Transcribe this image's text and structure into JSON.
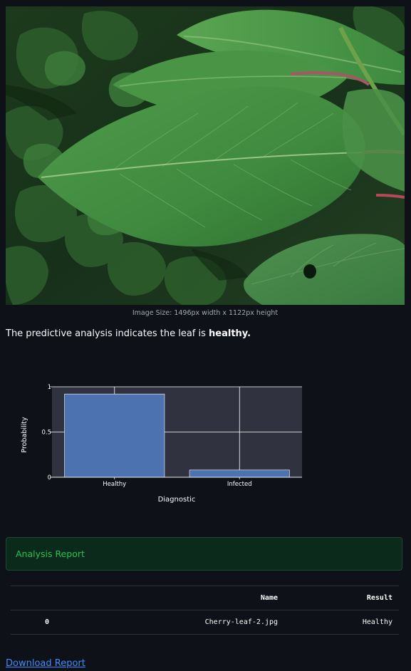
{
  "image": {
    "caption": "Image Size: 1496px width x 1122px height"
  },
  "analysis": {
    "prefix": "The predictive analysis indicates the leaf is ",
    "result": "healthy."
  },
  "chart_data": {
    "type": "bar",
    "categories": [
      "Healthy",
      "Infected"
    ],
    "values": [
      0.92,
      0.08
    ],
    "xlabel": "Diagnostic",
    "ylabel": "Probability",
    "ylim": [
      0,
      1
    ],
    "yticks": [
      "0",
      "0.5",
      "1"
    ],
    "grid": true,
    "bar_color": "#4c72b0",
    "plot_bg": "#30323f"
  },
  "report": {
    "title": "Analysis Report",
    "columns": [
      "",
      "Name",
      "Result"
    ],
    "rows": [
      {
        "index": "0",
        "name": "Cherry-leaf-2.jpg",
        "result": "Healthy"
      }
    ]
  },
  "download": {
    "label": "Download Report"
  },
  "colors": {
    "background": "#0e1117",
    "success_bg": "#0c2a1b",
    "success_text": "#21c354",
    "link": "#3d8bfd"
  }
}
